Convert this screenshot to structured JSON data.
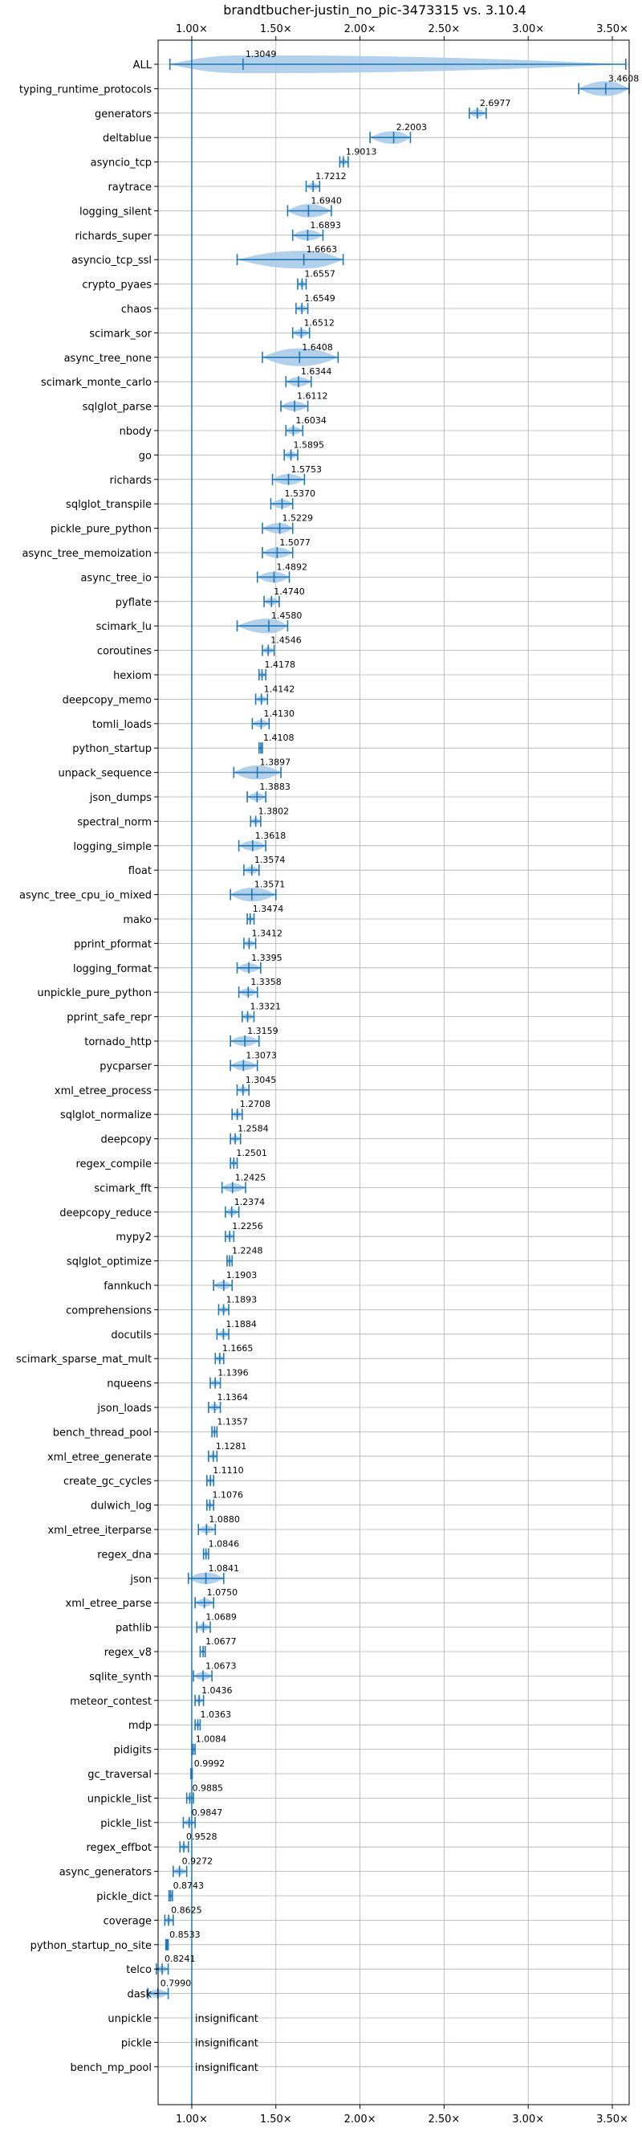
{
  "chart_data": {
    "type": "violin",
    "title": "brandtbucher-justin_no_pic-3473315 vs. 3.10.4",
    "xlim": [
      0.8,
      3.6
    ],
    "xticks": [
      1.0,
      1.5,
      2.0,
      2.5,
      3.0,
      3.5
    ],
    "xtick_labels": [
      "1.00×",
      "1.50×",
      "2.00×",
      "2.50×",
      "3.00×",
      "3.50×"
    ],
    "reference_line": 1.0,
    "colors": {
      "accent": "#1f77b4",
      "violin": "#a6c8e8",
      "grid": "#b0b0b0"
    },
    "benchmarks": [
      {
        "name": "ALL",
        "value": 1.3049,
        "label": "1.3049",
        "min": 0.87,
        "max": 3.58
      },
      {
        "name": "typing_runtime_protocols",
        "value": 3.4608,
        "label": "3.4608",
        "min": 3.3,
        "max": 3.6
      },
      {
        "name": "generators",
        "value": 2.6977,
        "label": "2.6977",
        "min": 2.65,
        "max": 2.75
      },
      {
        "name": "deltablue",
        "value": 2.2003,
        "label": "2.2003",
        "min": 2.06,
        "max": 2.3
      },
      {
        "name": "asyncio_tcp",
        "value": 1.9013,
        "label": "1.9013",
        "min": 1.88,
        "max": 1.93
      },
      {
        "name": "raytrace",
        "value": 1.7212,
        "label": "1.7212",
        "min": 1.68,
        "max": 1.76
      },
      {
        "name": "logging_silent",
        "value": 1.694,
        "label": "1.6940",
        "min": 1.57,
        "max": 1.83
      },
      {
        "name": "richards_super",
        "value": 1.6893,
        "label": "1.6893",
        "min": 1.6,
        "max": 1.78
      },
      {
        "name": "asyncio_tcp_ssl",
        "value": 1.6663,
        "label": "1.6663",
        "min": 1.27,
        "max": 1.9
      },
      {
        "name": "crypto_pyaes",
        "value": 1.6557,
        "label": "1.6557",
        "min": 1.63,
        "max": 1.68
      },
      {
        "name": "chaos",
        "value": 1.6549,
        "label": "1.6549",
        "min": 1.62,
        "max": 1.69
      },
      {
        "name": "scimark_sor",
        "value": 1.6512,
        "label": "1.6512",
        "min": 1.6,
        "max": 1.7
      },
      {
        "name": "async_tree_none",
        "value": 1.6408,
        "label": "1.6408",
        "min": 1.42,
        "max": 1.87
      },
      {
        "name": "scimark_monte_carlo",
        "value": 1.6344,
        "label": "1.6344",
        "min": 1.56,
        "max": 1.71
      },
      {
        "name": "sqlglot_parse",
        "value": 1.6112,
        "label": "1.6112",
        "min": 1.53,
        "max": 1.69
      },
      {
        "name": "nbody",
        "value": 1.6034,
        "label": "1.6034",
        "min": 1.56,
        "max": 1.66
      },
      {
        "name": "go",
        "value": 1.5895,
        "label": "1.5895",
        "min": 1.55,
        "max": 1.63
      },
      {
        "name": "richards",
        "value": 1.5753,
        "label": "1.5753",
        "min": 1.48,
        "max": 1.67
      },
      {
        "name": "sqlglot_transpile",
        "value": 1.537,
        "label": "1.5370",
        "min": 1.47,
        "max": 1.6
      },
      {
        "name": "pickle_pure_python",
        "value": 1.5229,
        "label": "1.5229",
        "min": 1.42,
        "max": 1.6
      },
      {
        "name": "async_tree_memoization",
        "value": 1.5077,
        "label": "1.5077",
        "min": 1.42,
        "max": 1.6
      },
      {
        "name": "async_tree_io",
        "value": 1.4892,
        "label": "1.4892",
        "min": 1.39,
        "max": 1.58
      },
      {
        "name": "pyflate",
        "value": 1.474,
        "label": "1.4740",
        "min": 1.43,
        "max": 1.52
      },
      {
        "name": "scimark_lu",
        "value": 1.458,
        "label": "1.4580",
        "min": 1.27,
        "max": 1.57
      },
      {
        "name": "coroutines",
        "value": 1.4546,
        "label": "1.4546",
        "min": 1.42,
        "max": 1.49
      },
      {
        "name": "hexiom",
        "value": 1.4178,
        "label": "1.4178",
        "min": 1.4,
        "max": 1.44
      },
      {
        "name": "deepcopy_memo",
        "value": 1.4142,
        "label": "1.4142",
        "min": 1.38,
        "max": 1.45
      },
      {
        "name": "tomli_loads",
        "value": 1.413,
        "label": "1.4130",
        "min": 1.36,
        "max": 1.46
      },
      {
        "name": "python_startup",
        "value": 1.4108,
        "label": "1.4108",
        "min": 1.4,
        "max": 1.42
      },
      {
        "name": "unpack_sequence",
        "value": 1.3897,
        "label": "1.3897",
        "min": 1.25,
        "max": 1.53
      },
      {
        "name": "json_dumps",
        "value": 1.3883,
        "label": "1.3883",
        "min": 1.33,
        "max": 1.44
      },
      {
        "name": "spectral_norm",
        "value": 1.3802,
        "label": "1.3802",
        "min": 1.35,
        "max": 1.41
      },
      {
        "name": "logging_simple",
        "value": 1.3618,
        "label": "1.3618",
        "min": 1.28,
        "max": 1.44
      },
      {
        "name": "float",
        "value": 1.3574,
        "label": "1.3574",
        "min": 1.31,
        "max": 1.4
      },
      {
        "name": "async_tree_cpu_io_mixed",
        "value": 1.3571,
        "label": "1.3571",
        "min": 1.23,
        "max": 1.5
      },
      {
        "name": "mako",
        "value": 1.3474,
        "label": "1.3474",
        "min": 1.33,
        "max": 1.37
      },
      {
        "name": "pprint_pformat",
        "value": 1.3412,
        "label": "1.3412",
        "min": 1.31,
        "max": 1.38
      },
      {
        "name": "logging_format",
        "value": 1.3395,
        "label": "1.3395",
        "min": 1.27,
        "max": 1.41
      },
      {
        "name": "unpickle_pure_python",
        "value": 1.3358,
        "label": "1.3358",
        "min": 1.28,
        "max": 1.39
      },
      {
        "name": "pprint_safe_repr",
        "value": 1.3321,
        "label": "1.3321",
        "min": 1.3,
        "max": 1.37
      },
      {
        "name": "tornado_http",
        "value": 1.3159,
        "label": "1.3159",
        "min": 1.23,
        "max": 1.4
      },
      {
        "name": "pycparser",
        "value": 1.3073,
        "label": "1.3073",
        "min": 1.23,
        "max": 1.39
      },
      {
        "name": "xml_etree_process",
        "value": 1.3045,
        "label": "1.3045",
        "min": 1.27,
        "max": 1.34
      },
      {
        "name": "sqlglot_normalize",
        "value": 1.2708,
        "label": "1.2708",
        "min": 1.24,
        "max": 1.3
      },
      {
        "name": "deepcopy",
        "value": 1.2584,
        "label": "1.2584",
        "min": 1.23,
        "max": 1.29
      },
      {
        "name": "regex_compile",
        "value": 1.2501,
        "label": "1.2501",
        "min": 1.23,
        "max": 1.27
      },
      {
        "name": "scimark_fft",
        "value": 1.2425,
        "label": "1.2425",
        "min": 1.18,
        "max": 1.32
      },
      {
        "name": "deepcopy_reduce",
        "value": 1.2374,
        "label": "1.2374",
        "min": 1.2,
        "max": 1.28
      },
      {
        "name": "mypy2",
        "value": 1.2256,
        "label": "1.2256",
        "min": 1.2,
        "max": 1.25
      },
      {
        "name": "sqlglot_optimize",
        "value": 1.2248,
        "label": "1.2248",
        "min": 1.21,
        "max": 1.24
      },
      {
        "name": "fannkuch",
        "value": 1.1903,
        "label": "1.1903",
        "min": 1.13,
        "max": 1.24
      },
      {
        "name": "comprehensions",
        "value": 1.1893,
        "label": "1.1893",
        "min": 1.16,
        "max": 1.22
      },
      {
        "name": "docutils",
        "value": 1.1884,
        "label": "1.1884",
        "min": 1.15,
        "max": 1.22
      },
      {
        "name": "scimark_sparse_mat_mult",
        "value": 1.1665,
        "label": "1.1665",
        "min": 1.14,
        "max": 1.19
      },
      {
        "name": "nqueens",
        "value": 1.1396,
        "label": "1.1396",
        "min": 1.11,
        "max": 1.17
      },
      {
        "name": "json_loads",
        "value": 1.1364,
        "label": "1.1364",
        "min": 1.1,
        "max": 1.17
      },
      {
        "name": "bench_thread_pool",
        "value": 1.1357,
        "label": "1.1357",
        "min": 1.12,
        "max": 1.15
      },
      {
        "name": "xml_etree_generate",
        "value": 1.1281,
        "label": "1.1281",
        "min": 1.1,
        "max": 1.15
      },
      {
        "name": "create_gc_cycles",
        "value": 1.111,
        "label": "1.1110",
        "min": 1.09,
        "max": 1.13
      },
      {
        "name": "dulwich_log",
        "value": 1.1076,
        "label": "1.1076",
        "min": 1.09,
        "max": 1.13
      },
      {
        "name": "xml_etree_iterparse",
        "value": 1.088,
        "label": "1.0880",
        "min": 1.04,
        "max": 1.14
      },
      {
        "name": "regex_dna",
        "value": 1.0846,
        "label": "1.0846",
        "min": 1.07,
        "max": 1.1
      },
      {
        "name": "json",
        "value": 1.0841,
        "label": "1.0841",
        "min": 0.98,
        "max": 1.19
      },
      {
        "name": "xml_etree_parse",
        "value": 1.075,
        "label": "1.0750",
        "min": 1.02,
        "max": 1.13
      },
      {
        "name": "pathlib",
        "value": 1.0689,
        "label": "1.0689",
        "min": 1.03,
        "max": 1.11
      },
      {
        "name": "regex_v8",
        "value": 1.0677,
        "label": "1.0677",
        "min": 1.05,
        "max": 1.08
      },
      {
        "name": "sqlite_synth",
        "value": 1.0673,
        "label": "1.0673",
        "min": 1.01,
        "max": 1.12
      },
      {
        "name": "meteor_contest",
        "value": 1.0436,
        "label": "1.0436",
        "min": 1.02,
        "max": 1.07
      },
      {
        "name": "mdp",
        "value": 1.0363,
        "label": "1.0363",
        "min": 1.02,
        "max": 1.05
      },
      {
        "name": "pidigits",
        "value": 1.0084,
        "label": "1.0084",
        "min": 1.0,
        "max": 1.02
      },
      {
        "name": "gc_traversal",
        "value": 0.9992,
        "label": "0.9992",
        "min": 0.995,
        "max": 1.003
      },
      {
        "name": "unpickle_list",
        "value": 0.9885,
        "label": "0.9885",
        "min": 0.97,
        "max": 1.01
      },
      {
        "name": "pickle_list",
        "value": 0.9847,
        "label": "0.9847",
        "min": 0.95,
        "max": 1.02
      },
      {
        "name": "regex_effbot",
        "value": 0.9528,
        "label": "0.9528",
        "min": 0.93,
        "max": 0.98
      },
      {
        "name": "async_generators",
        "value": 0.9272,
        "label": "0.9272",
        "min": 0.89,
        "max": 0.97
      },
      {
        "name": "pickle_dict",
        "value": 0.8743,
        "label": "0.8743",
        "min": 0.865,
        "max": 0.885
      },
      {
        "name": "coverage",
        "value": 0.8625,
        "label": "0.8625",
        "min": 0.84,
        "max": 0.89
      },
      {
        "name": "python_startup_no_site",
        "value": 0.8533,
        "label": "0.8533",
        "min": 0.846,
        "max": 0.86
      },
      {
        "name": "telco",
        "value": 0.8241,
        "label": "0.8241",
        "min": 0.79,
        "max": 0.86
      },
      {
        "name": "dask",
        "value": 0.799,
        "label": "0.7990",
        "min": 0.74,
        "max": 0.86
      },
      {
        "name": "unpickle",
        "value": null,
        "label": "insignificant",
        "min": null,
        "max": null
      },
      {
        "name": "pickle",
        "value": null,
        "label": "insignificant",
        "min": null,
        "max": null
      },
      {
        "name": "bench_mp_pool",
        "value": null,
        "label": "insignificant",
        "min": null,
        "max": null
      }
    ]
  }
}
